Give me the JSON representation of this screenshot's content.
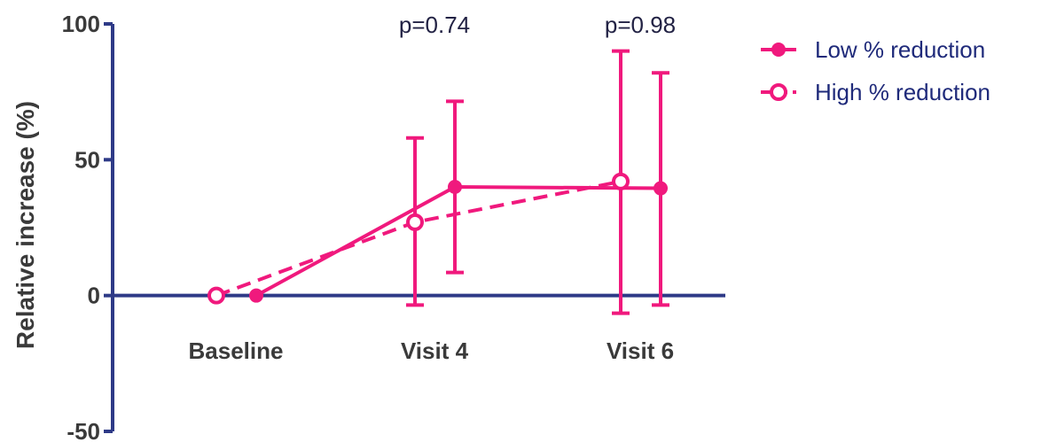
{
  "chart_data": {
    "type": "line",
    "categories": [
      "Baseline",
      "Visit 4",
      "Visit 6"
    ],
    "ylabel": "Relative increase (%)",
    "ylim": [
      -50,
      100
    ],
    "yticks": [
      "100",
      "50",
      "0",
      "-50"
    ],
    "annotations": [
      {
        "category": "Visit 4",
        "text": "p=0.74"
      },
      {
        "category": "Visit 6",
        "text": "p=0.98"
      }
    ],
    "series": [
      {
        "name": "Low % reduction",
        "marker": "filled-circle",
        "line": "solid",
        "values": [
          0,
          40,
          39.5
        ],
        "err_low": [
          0,
          8.5,
          -3.5
        ],
        "err_high": [
          0,
          71.5,
          82
        ]
      },
      {
        "name": "High % reduction",
        "marker": "open-circle",
        "line": "dashed",
        "values": [
          0,
          27,
          42
        ],
        "err_low": [
          0,
          -3.5,
          -6.5
        ],
        "err_high": [
          0,
          58,
          90
        ]
      }
    ],
    "legend": "top-right",
    "grid": false,
    "colors": {
      "series": "#f0197d",
      "axis": "#2e3a87",
      "text": "#3a3a3a"
    }
  }
}
